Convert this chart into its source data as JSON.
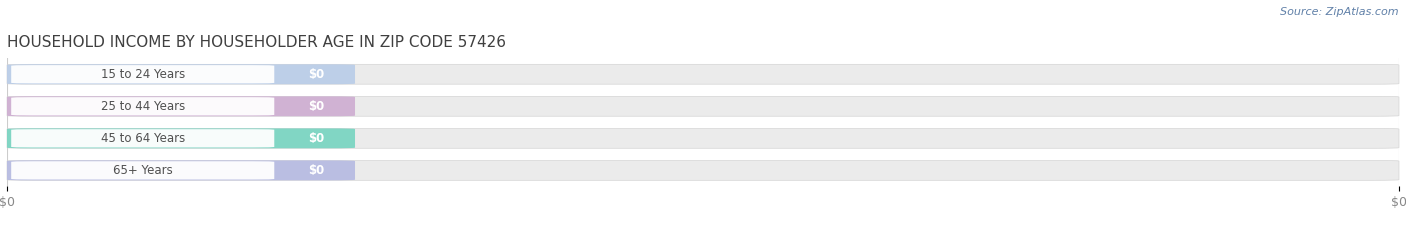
{
  "title": "HOUSEHOLD INCOME BY HOUSEHOLDER AGE IN ZIP CODE 57426",
  "source": "Source: ZipAtlas.com",
  "categories": [
    "15 to 24 Years",
    "25 to 44 Years",
    "45 to 64 Years",
    "65+ Years"
  ],
  "values": [
    0,
    0,
    0,
    0
  ],
  "bar_colors": [
    "#aec6e8",
    "#c8a0cc",
    "#5ecfb8",
    "#aab0e0"
  ],
  "bar_bg_color": "#ebebeb",
  "title_color": "#404040",
  "label_text_color": "#505050",
  "source_color": "#6080a8",
  "tick_label_color": "#888888",
  "background_color": "#ffffff",
  "figsize": [
    14.06,
    2.33
  ],
  "dpi": 100
}
